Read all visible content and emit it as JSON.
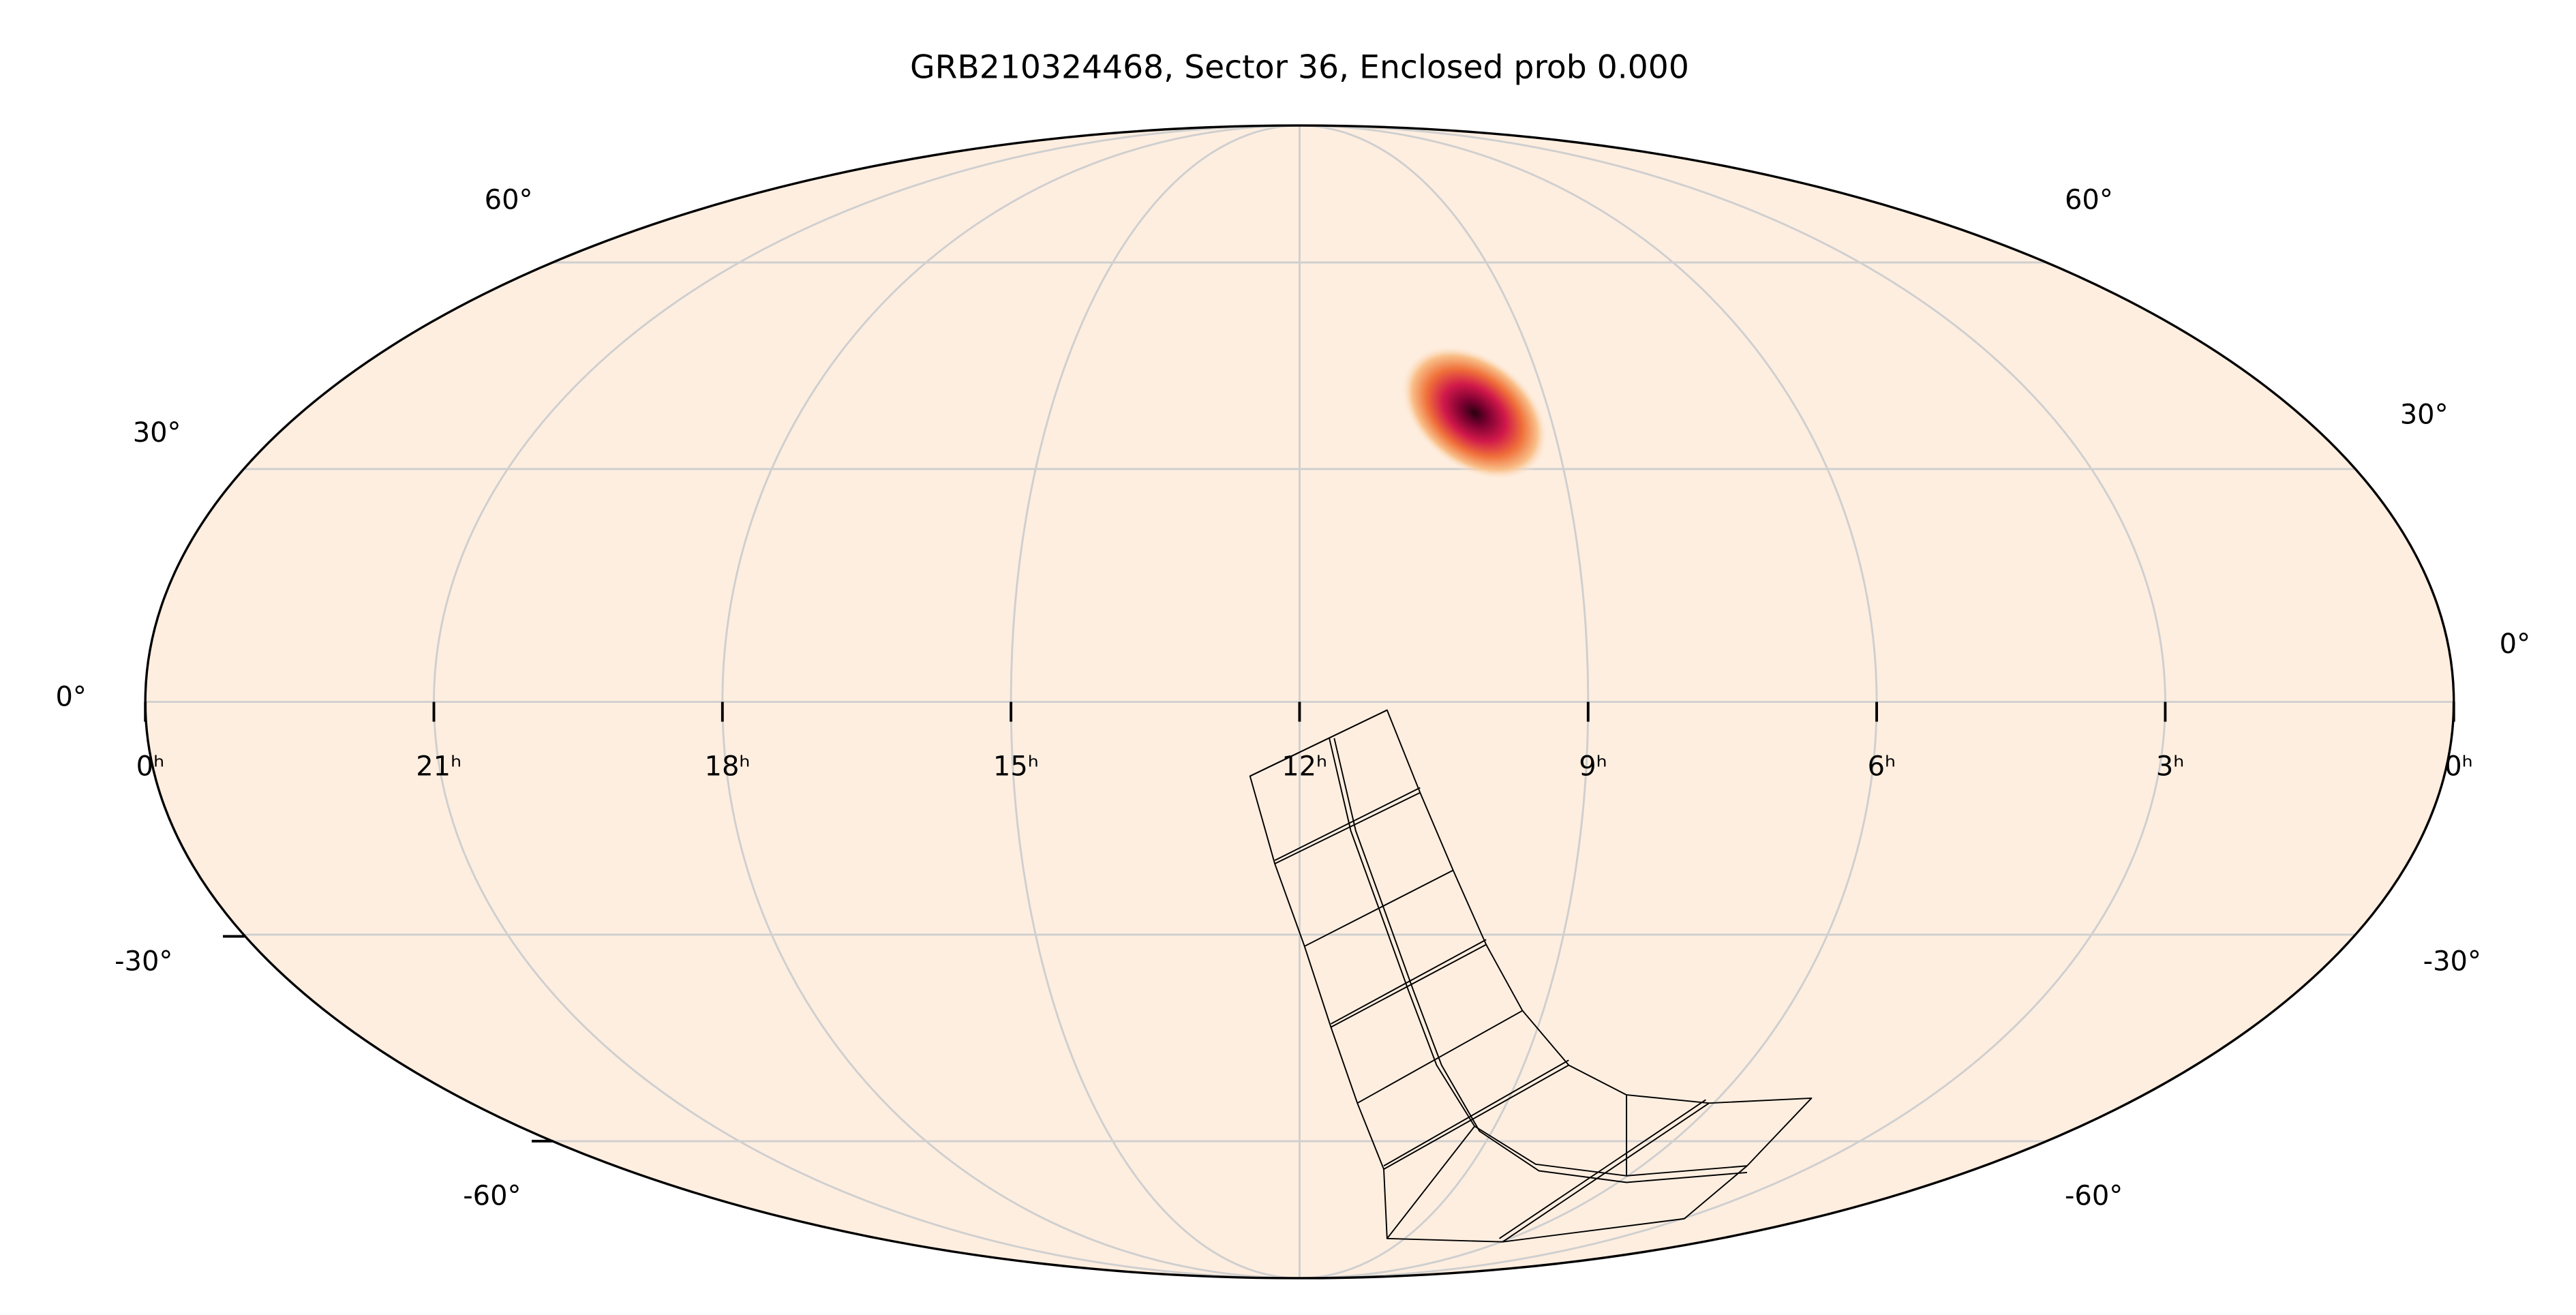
{
  "title": "GRB210324468, Sector 36, Enclosed prob 0.000",
  "ra_labels": [
    "0ʰ",
    "21ʰ",
    "18ʰ",
    "15ʰ",
    "12ʰ",
    "9ʰ",
    "6ʰ",
    "3ʰ",
    "0ʰ"
  ],
  "dec_labels_left": [
    "60°",
    "30°",
    "0°",
    "-30°",
    "-60°"
  ],
  "dec_labels_right": [
    "60°",
    "30°",
    "0°",
    "-30°",
    "-60°"
  ]
}
